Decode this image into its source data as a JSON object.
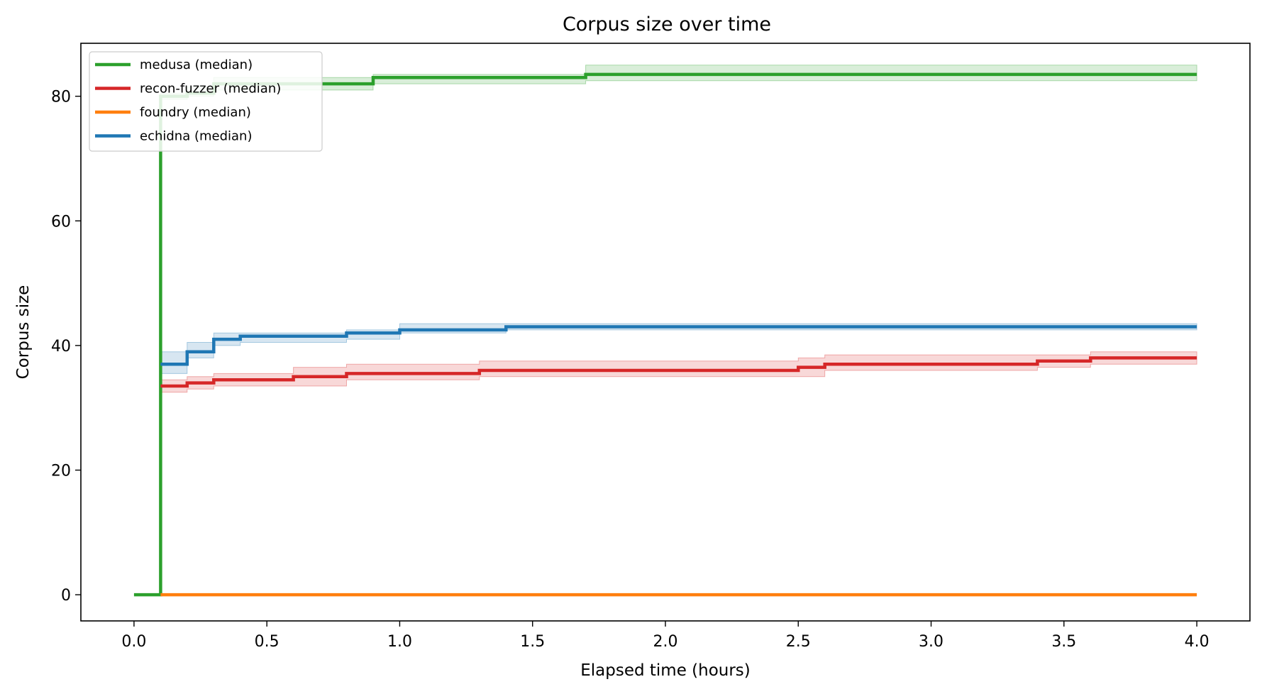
{
  "chart_data": {
    "type": "line",
    "title": "Corpus size over time",
    "xlabel": "Elapsed time (hours)",
    "ylabel": "Corpus size",
    "xlim": [
      -0.2,
      4.2
    ],
    "ylim": [
      -4.2,
      88.5
    ],
    "x_ticks": [
      0.0,
      0.5,
      1.0,
      1.5,
      2.0,
      2.5,
      3.0,
      3.5,
      4.0
    ],
    "x_tick_labels": [
      "0.0",
      "0.5",
      "1.0",
      "1.5",
      "2.0",
      "2.5",
      "3.0",
      "3.5",
      "4.0"
    ],
    "y_ticks": [
      0,
      20,
      40,
      60,
      80
    ],
    "y_tick_labels": [
      "0",
      "20",
      "40",
      "60",
      "80"
    ],
    "grid": false,
    "legend_position": "top-left",
    "step": "post",
    "series": [
      {
        "name": "medusa (median)",
        "color": "#2ca02c",
        "x": [
          0.0,
          0.1,
          0.2,
          0.3,
          0.9,
          1.7,
          4.0
        ],
        "y": [
          0,
          80,
          80.5,
          82,
          83,
          83.5,
          83.5
        ],
        "band_low": [
          0,
          79.5,
          80,
          81,
          82,
          82.5,
          82.5
        ],
        "band_high": [
          0,
          80.5,
          81.5,
          83,
          83.5,
          85,
          85
        ]
      },
      {
        "name": "recon-fuzzer (median)",
        "color": "#d62728",
        "x": [
          0.1,
          0.2,
          0.3,
          0.6,
          0.8,
          1.3,
          2.5,
          2.6,
          3.4,
          3.6,
          4.0
        ],
        "y": [
          33.5,
          34,
          34.5,
          35,
          35.5,
          36,
          36.5,
          37,
          37.5,
          38,
          38
        ],
        "band_low": [
          32.5,
          33,
          33.5,
          33.5,
          34.5,
          35,
          35,
          36,
          36.5,
          37,
          37
        ],
        "band_high": [
          34.5,
          35,
          35.5,
          36.5,
          37,
          37.5,
          38,
          38.5,
          38.5,
          39,
          39
        ]
      },
      {
        "name": "foundry (median)",
        "color": "#ff7f0e",
        "x": [
          0.1,
          4.0
        ],
        "y": [
          0,
          0
        ],
        "band_low": [
          0,
          0
        ],
        "band_high": [
          0,
          0
        ]
      },
      {
        "name": "echidna (median)",
        "color": "#1f77b4",
        "x": [
          0.1,
          0.2,
          0.3,
          0.4,
          0.8,
          1.0,
          1.4,
          4.0
        ],
        "y": [
          37,
          39,
          41,
          41.5,
          42,
          42.5,
          43,
          43
        ],
        "band_low": [
          35.5,
          38,
          40,
          40.5,
          41,
          42,
          42.5,
          42.5
        ],
        "band_high": [
          39,
          40.5,
          42,
          42,
          42.5,
          43.5,
          43.5,
          43.5
        ]
      }
    ]
  }
}
